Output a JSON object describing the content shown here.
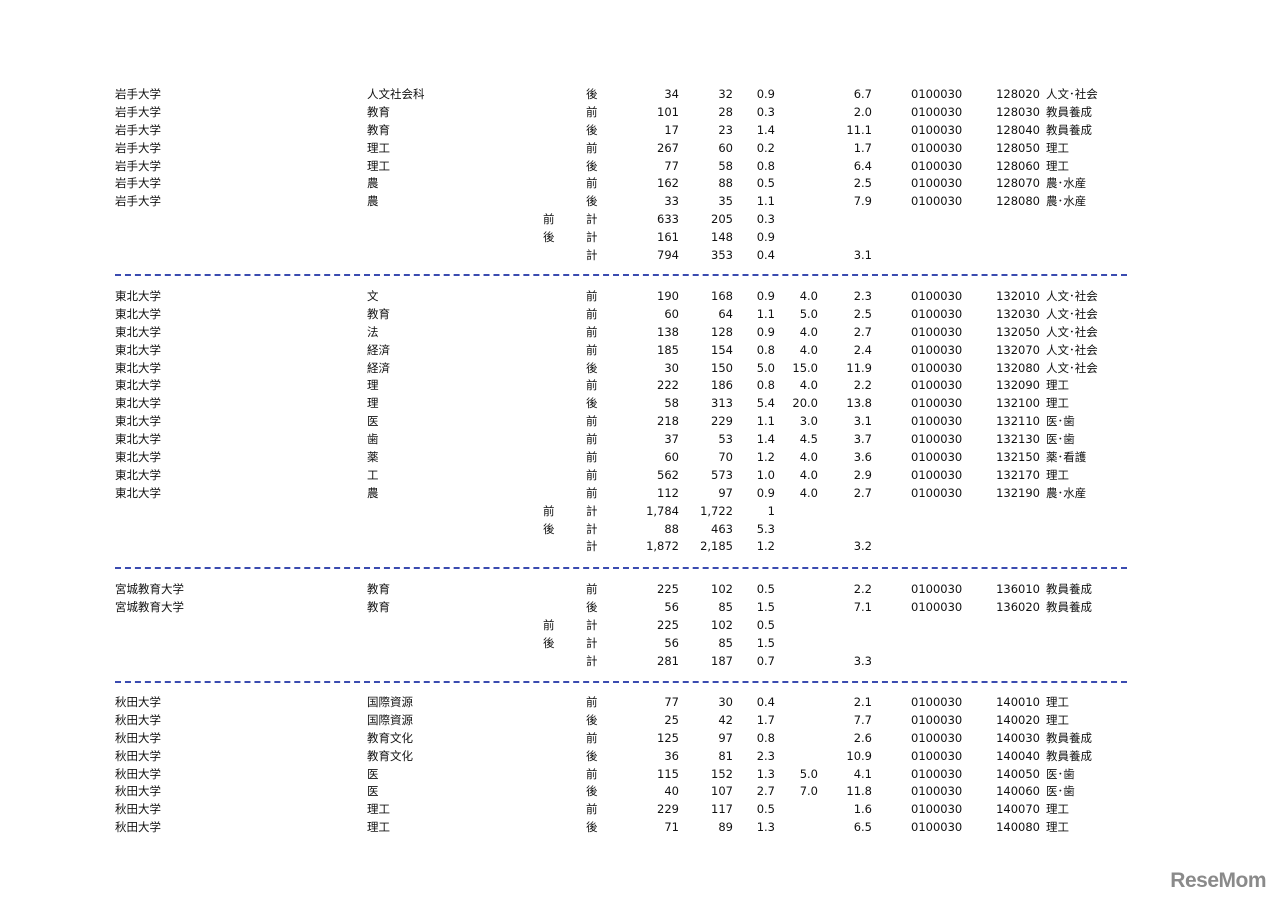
{
  "logo_text": "ReseMom",
  "separator_color": "#3b4bb0",
  "sections": [
    {
      "rows": [
        [
          "岩手大学",
          "人文社会科",
          "",
          "後",
          "34",
          "32",
          "0.9",
          "",
          "6.7",
          "0100030",
          "128020",
          "人文･社会"
        ],
        [
          "岩手大学",
          "教育",
          "",
          "前",
          "101",
          "28",
          "0.3",
          "",
          "2.0",
          "0100030",
          "128030",
          "教員養成"
        ],
        [
          "岩手大学",
          "教育",
          "",
          "後",
          "17",
          "23",
          "1.4",
          "",
          "11.1",
          "0100030",
          "128040",
          "教員養成"
        ],
        [
          "岩手大学",
          "理工",
          "",
          "前",
          "267",
          "60",
          "0.2",
          "",
          "1.7",
          "0100030",
          "128050",
          "理工"
        ],
        [
          "岩手大学",
          "理工",
          "",
          "後",
          "77",
          "58",
          "0.8",
          "",
          "6.4",
          "0100030",
          "128060",
          "理工"
        ],
        [
          "岩手大学",
          "農",
          "",
          "前",
          "162",
          "88",
          "0.5",
          "",
          "2.5",
          "0100030",
          "128070",
          "農･水産"
        ],
        [
          "岩手大学",
          "農",
          "",
          "後",
          "33",
          "35",
          "1.1",
          "",
          "7.9",
          "0100030",
          "128080",
          "農･水産"
        ],
        [
          "",
          "",
          "前",
          "計",
          "633",
          "205",
          "0.3",
          "",
          "",
          "",
          "",
          ""
        ],
        [
          "",
          "",
          "後",
          "計",
          "161",
          "148",
          "0.9",
          "",
          "",
          "",
          "",
          ""
        ],
        [
          "",
          "",
          "",
          "計",
          "794",
          "353",
          "0.4",
          "",
          "3.1",
          "",
          "",
          ""
        ]
      ]
    },
    {
      "rows": [
        [
          "東北大学",
          "文",
          "",
          "前",
          "190",
          "168",
          "0.9",
          "4.0",
          "2.3",
          "0100030",
          "132010",
          "人文･社会"
        ],
        [
          "東北大学",
          "教育",
          "",
          "前",
          "60",
          "64",
          "1.1",
          "5.0",
          "2.5",
          "0100030",
          "132030",
          "人文･社会"
        ],
        [
          "東北大学",
          "法",
          "",
          "前",
          "138",
          "128",
          "0.9",
          "4.0",
          "2.7",
          "0100030",
          "132050",
          "人文･社会"
        ],
        [
          "東北大学",
          "経済",
          "",
          "前",
          "185",
          "154",
          "0.8",
          "4.0",
          "2.4",
          "0100030",
          "132070",
          "人文･社会"
        ],
        [
          "東北大学",
          "経済",
          "",
          "後",
          "30",
          "150",
          "5.0",
          "15.0",
          "11.9",
          "0100030",
          "132080",
          "人文･社会"
        ],
        [
          "東北大学",
          "理",
          "",
          "前",
          "222",
          "186",
          "0.8",
          "4.0",
          "2.2",
          "0100030",
          "132090",
          "理工"
        ],
        [
          "東北大学",
          "理",
          "",
          "後",
          "58",
          "313",
          "5.4",
          "20.0",
          "13.8",
          "0100030",
          "132100",
          "理工"
        ],
        [
          "東北大学",
          "医",
          "",
          "前",
          "218",
          "229",
          "1.1",
          "3.0",
          "3.1",
          "0100030",
          "132110",
          "医･歯"
        ],
        [
          "東北大学",
          "歯",
          "",
          "前",
          "37",
          "53",
          "1.4",
          "4.5",
          "3.7",
          "0100030",
          "132130",
          "医･歯"
        ],
        [
          "東北大学",
          "薬",
          "",
          "前",
          "60",
          "70",
          "1.2",
          "4.0",
          "3.6",
          "0100030",
          "132150",
          "薬･看護"
        ],
        [
          "東北大学",
          "工",
          "",
          "前",
          "562",
          "573",
          "1.0",
          "4.0",
          "2.9",
          "0100030",
          "132170",
          "理工"
        ],
        [
          "東北大学",
          "農",
          "",
          "前",
          "112",
          "97",
          "0.9",
          "4.0",
          "2.7",
          "0100030",
          "132190",
          "農･水産"
        ],
        [
          "",
          "",
          "前",
          "計",
          "1,784",
          "1,722",
          "1",
          "",
          "",
          "",
          "",
          ""
        ],
        [
          "",
          "",
          "後",
          "計",
          "88",
          "463",
          "5.3",
          "",
          "",
          "",
          "",
          ""
        ],
        [
          "",
          "",
          "",
          "計",
          "1,872",
          "2,185",
          "1.2",
          "",
          "3.2",
          "",
          "",
          ""
        ]
      ]
    },
    {
      "rows": [
        [
          "宮城教育大学",
          "教育",
          "",
          "前",
          "225",
          "102",
          "0.5",
          "",
          "2.2",
          "0100030",
          "136010",
          "教員養成"
        ],
        [
          "宮城教育大学",
          "教育",
          "",
          "後",
          "56",
          "85",
          "1.5",
          "",
          "7.1",
          "0100030",
          "136020",
          "教員養成"
        ],
        [
          "",
          "",
          "前",
          "計",
          "225",
          "102",
          "0.5",
          "",
          "",
          "",
          "",
          ""
        ],
        [
          "",
          "",
          "後",
          "計",
          "56",
          "85",
          "1.5",
          "",
          "",
          "",
          "",
          ""
        ],
        [
          "",
          "",
          "",
          "計",
          "281",
          "187",
          "0.7",
          "",
          "3.3",
          "",
          "",
          ""
        ]
      ]
    },
    {
      "rows": [
        [
          "秋田大学",
          "国際資源",
          "",
          "前",
          "77",
          "30",
          "0.4",
          "",
          "2.1",
          "0100030",
          "140010",
          "理工"
        ],
        [
          "秋田大学",
          "国際資源",
          "",
          "後",
          "25",
          "42",
          "1.7",
          "",
          "7.7",
          "0100030",
          "140020",
          "理工"
        ],
        [
          "秋田大学",
          "教育文化",
          "",
          "前",
          "125",
          "97",
          "0.8",
          "",
          "2.6",
          "0100030",
          "140030",
          "教員養成"
        ],
        [
          "秋田大学",
          "教育文化",
          "",
          "後",
          "36",
          "81",
          "2.3",
          "",
          "10.9",
          "0100030",
          "140040",
          "教員養成"
        ],
        [
          "秋田大学",
          "医",
          "",
          "前",
          "115",
          "152",
          "1.3",
          "5.0",
          "4.1",
          "0100030",
          "140050",
          "医･歯"
        ],
        [
          "秋田大学",
          "医",
          "",
          "後",
          "40",
          "107",
          "2.7",
          "7.0",
          "11.8",
          "0100030",
          "140060",
          "医･歯"
        ],
        [
          "秋田大学",
          "理工",
          "",
          "前",
          "229",
          "117",
          "0.5",
          "",
          "1.6",
          "0100030",
          "140070",
          "理工"
        ],
        [
          "秋田大学",
          "理工",
          "",
          "後",
          "71",
          "89",
          "1.3",
          "",
          "6.5",
          "0100030",
          "140080",
          "理工"
        ]
      ]
    }
  ]
}
